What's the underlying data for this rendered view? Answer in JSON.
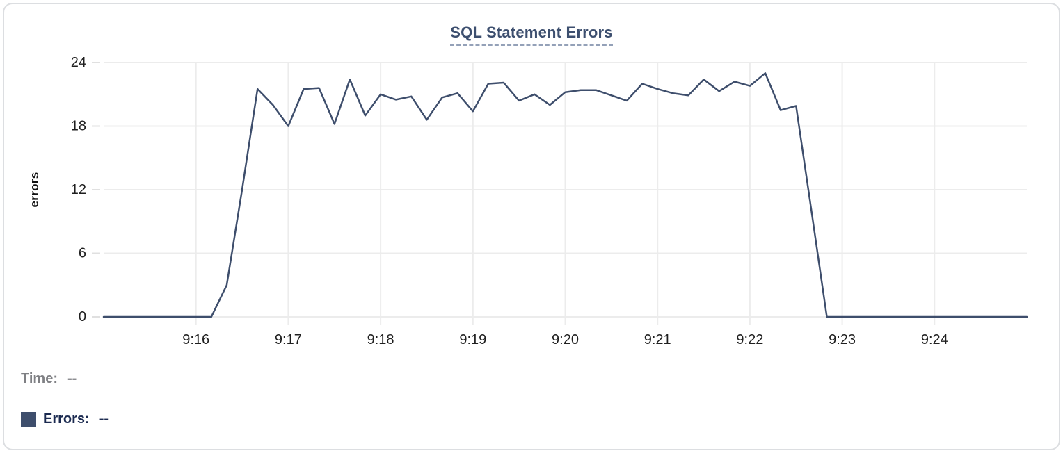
{
  "chart_data": {
    "type": "line",
    "title": "SQL Statement Errors",
    "xlabel": "",
    "ylabel": "errors",
    "ylim": [
      0,
      24
    ],
    "y_ticks": [
      0,
      6,
      12,
      18,
      24
    ],
    "x_ticks": [
      "9:16",
      "9:17",
      "9:18",
      "9:19",
      "9:20",
      "9:21",
      "9:22",
      "9:23",
      "9:24"
    ],
    "x_range_start": "9:15:00",
    "x_range_end": "9:25:00",
    "x_interval_seconds": 10,
    "grid": true,
    "legend_position": "bottom-left",
    "series": [
      {
        "name": "Errors",
        "color": "#3e4e6c",
        "values": [
          0,
          0,
          0,
          0,
          0,
          0,
          0,
          0,
          3,
          12,
          21.5,
          20,
          18,
          21.5,
          21.6,
          18.2,
          22.4,
          19,
          21,
          20.5,
          20.8,
          18.6,
          20.7,
          21.1,
          19.4,
          22,
          22.1,
          20.4,
          21,
          20,
          21.2,
          21.4,
          21.4,
          20.9,
          20.4,
          22,
          21.5,
          21.1,
          20.9,
          22.4,
          21.3,
          22.2,
          21.8,
          23,
          19.5,
          19.9,
          10,
          0,
          0,
          0,
          0,
          0,
          0,
          0,
          0,
          0,
          0,
          0,
          0,
          0,
          0
        ]
      }
    ]
  },
  "tooltip": {
    "time_label": "Time:",
    "time_value": "--",
    "errors_label": "Errors:",
    "errors_value": "--"
  },
  "colors": {
    "line": "#3e4e6c",
    "swatch": "#3e4e6c",
    "grid": "#ececec",
    "tick": "#e0e0e0",
    "axis_text": "#1f1f1f",
    "title": "#3d4f6f",
    "title_underline": "#94a1b8",
    "time_label": "#7f8084",
    "errors_label": "#1b2a50",
    "card_border": "#dcdee1"
  }
}
